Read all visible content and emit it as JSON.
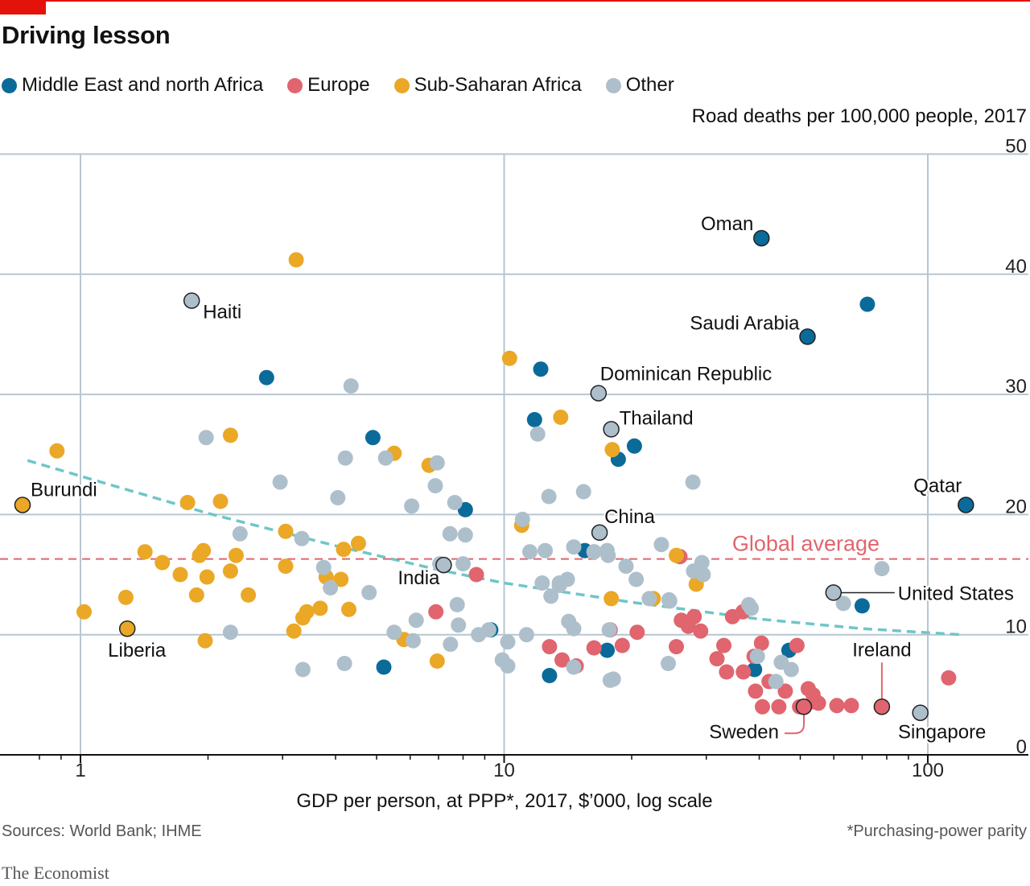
{
  "title": "Driving lesson",
  "legend": [
    {
      "label": "Middle East and north Africa",
      "color": "#0a6b9a"
    },
    {
      "label": "Europe",
      "color": "#e0656e"
    },
    {
      "label": "Sub-Saharan Africa",
      "color": "#eaa826"
    },
    {
      "label": "Other",
      "color": "#aebfcc"
    }
  ],
  "source": "Sources: World Bank; IHME",
  "footnote": "*Purchasing-power parity",
  "brand": "The Economist",
  "chart_data": {
    "type": "scatter",
    "ylabel": "Road deaths per 100,000 people, 2017",
    "xlabel": "GDP per person, at PPP*, 2017, $’000, log scale",
    "x_scale": "log",
    "xlim": [
      0.72,
      128
    ],
    "ylim": [
      0,
      50
    ],
    "x_ticks": [
      {
        "value": 1,
        "label": "1"
      },
      {
        "value": 10,
        "label": "10"
      },
      {
        "value": 100,
        "label": "100"
      }
    ],
    "y_ticks": [
      {
        "value": 0,
        "label": "0"
      },
      {
        "value": 10,
        "label": "10"
      },
      {
        "value": 20,
        "label": "20"
      },
      {
        "value": 30,
        "label": "30"
      },
      {
        "value": 40,
        "label": "40"
      },
      {
        "value": 50,
        "label": "50"
      }
    ],
    "grid": true,
    "reference_line": {
      "label": "Global average",
      "y": 16.3,
      "color": "#e0656e"
    },
    "trend_line": {
      "color": "#6fc6c6",
      "points": [
        [
          0.75,
          24.5
        ],
        [
          1.0,
          23.2
        ],
        [
          2.0,
          20.1
        ],
        [
          4.0,
          17.4
        ],
        [
          7.0,
          15.4
        ],
        [
          10.0,
          14.3
        ],
        [
          20.0,
          12.7
        ],
        [
          40.0,
          11.3
        ],
        [
          70.0,
          10.5
        ],
        [
          120.0,
          10.0
        ]
      ]
    },
    "series": [
      {
        "name": "Middle East and north Africa",
        "color": "#0a6b9a",
        "points": [
          [
            40.5,
            43
          ],
          [
            72,
            37.5
          ],
          [
            52,
            34.8
          ],
          [
            2.75,
            31.4
          ],
          [
            12.2,
            32.1
          ],
          [
            11.8,
            27.9
          ],
          [
            20.3,
            25.7
          ],
          [
            18.6,
            24.6
          ],
          [
            4.9,
            26.4
          ],
          [
            8.1,
            20.4
          ],
          [
            123,
            20.8
          ],
          [
            15.5,
            17
          ],
          [
            70,
            12.4
          ],
          [
            9.3,
            10.4
          ],
          [
            5.2,
            7.3
          ],
          [
            17.5,
            8.7
          ],
          [
            47,
            8.7
          ],
          [
            39,
            7.1
          ],
          [
            12.8,
            6.6
          ]
        ]
      },
      {
        "name": "Europe",
        "color": "#e0656e",
        "points": [
          [
            26,
            16.5
          ],
          [
            8.6,
            15
          ],
          [
            6.9,
            11.9
          ],
          [
            12.8,
            9
          ],
          [
            13.7,
            7.9
          ],
          [
            14.8,
            7.4
          ],
          [
            16.3,
            8.9
          ],
          [
            17.8,
            10.4
          ],
          [
            19,
            9.1
          ],
          [
            20.6,
            10.2
          ],
          [
            25.5,
            9
          ],
          [
            26.2,
            11.2
          ],
          [
            27.2,
            10.7
          ],
          [
            28.1,
            11.5
          ],
          [
            29.1,
            10.3
          ],
          [
            31.8,
            8
          ],
          [
            33,
            9.1
          ],
          [
            33.5,
            6.9
          ],
          [
            34.6,
            11.5
          ],
          [
            36.6,
            11.9
          ],
          [
            36.7,
            6.9
          ],
          [
            38.9,
            8.2
          ],
          [
            39.2,
            5.3
          ],
          [
            40.5,
            9.3
          ],
          [
            40.7,
            4
          ],
          [
            42.2,
            6.1
          ],
          [
            44.5,
            4
          ],
          [
            46.1,
            5.3
          ],
          [
            49.1,
            9.1
          ],
          [
            49.8,
            4
          ],
          [
            52.2,
            5.5
          ],
          [
            53.6,
            5
          ],
          [
            54.1,
            4.4
          ],
          [
            55.2,
            4.3
          ],
          [
            61,
            4.1
          ],
          [
            66,
            4.1
          ],
          [
            78,
            4
          ],
          [
            112,
            6.4
          ]
        ]
      },
      {
        "name": "Sub-Saharan Africa",
        "color": "#eaa826",
        "points": [
          [
            3.23,
            41.2
          ],
          [
            10.3,
            33
          ],
          [
            13.6,
            28.1
          ],
          [
            2.26,
            26.6
          ],
          [
            0.88,
            25.3
          ],
          [
            5.5,
            25.1
          ],
          [
            6.65,
            24.1
          ],
          [
            18,
            25.4
          ],
          [
            1.79,
            21
          ],
          [
            2.14,
            21.1
          ],
          [
            11,
            19.1
          ],
          [
            1.42,
            16.9
          ],
          [
            1.56,
            16
          ],
          [
            1.72,
            15
          ],
          [
            1.88,
            13.3
          ],
          [
            1.91,
            16.6
          ],
          [
            1.95,
            17
          ],
          [
            1.99,
            14.8
          ],
          [
            2.26,
            15.3
          ],
          [
            2.33,
            16.6
          ],
          [
            2.49,
            13.3
          ],
          [
            3.05,
            18.6
          ],
          [
            3.05,
            15.7
          ],
          [
            3.35,
            11.4
          ],
          [
            3.42,
            11.9
          ],
          [
            3.19,
            10.3
          ],
          [
            3.8,
            14.8
          ],
          [
            3.68,
            12.2
          ],
          [
            4.12,
            14.6
          ],
          [
            4.18,
            17.1
          ],
          [
            4.3,
            12.1
          ],
          [
            4.53,
            17.6
          ],
          [
            1.02,
            11.9
          ],
          [
            1.28,
            13.1
          ],
          [
            1.97,
            9.5
          ],
          [
            5.8,
            9.6
          ],
          [
            6.95,
            7.8
          ],
          [
            17.9,
            13
          ],
          [
            22.5,
            13
          ],
          [
            25.5,
            16.6
          ],
          [
            28.4,
            14.2
          ]
        ]
      },
      {
        "name": "Other",
        "color": "#aebfcc",
        "points": [
          [
            1.83,
            37.8
          ],
          [
            4.35,
            30.7
          ],
          [
            1.98,
            26.4
          ],
          [
            4.22,
            24.7
          ],
          [
            5.25,
            24.7
          ],
          [
            6.95,
            24.3
          ],
          [
            2.96,
            22.7
          ],
          [
            4.05,
            21.4
          ],
          [
            6.05,
            20.7
          ],
          [
            6.88,
            22.4
          ],
          [
            7.65,
            21
          ],
          [
            11.05,
            19.6
          ],
          [
            12.75,
            21.5
          ],
          [
            15.4,
            21.9
          ],
          [
            12,
            26.7
          ],
          [
            27.9,
            22.7
          ],
          [
            2.38,
            18.4
          ],
          [
            3.33,
            18
          ],
          [
            7.45,
            18.4
          ],
          [
            8.1,
            18.3
          ],
          [
            7.05,
            15.9
          ],
          [
            8,
            15.9
          ],
          [
            11.5,
            16.9
          ],
          [
            12.5,
            17
          ],
          [
            14.6,
            17.3
          ],
          [
            16.3,
            16.9
          ],
          [
            17.5,
            17
          ],
          [
            17.6,
            16.6
          ],
          [
            19.4,
            15.7
          ],
          [
            20.5,
            14.6
          ],
          [
            22,
            13
          ],
          [
            23.5,
            17.5
          ],
          [
            24.6,
            12.8
          ],
          [
            28,
            15.3
          ],
          [
            29.3,
            16
          ],
          [
            29.5,
            15
          ],
          [
            3.75,
            15.6
          ],
          [
            3.89,
            13.9
          ],
          [
            4.8,
            13.5
          ],
          [
            6.2,
            11.2
          ],
          [
            7.75,
            12.5
          ],
          [
            6.1,
            9.5
          ],
          [
            5.5,
            10.2
          ],
          [
            7.47,
            9.2
          ],
          [
            7.8,
            10.8
          ],
          [
            8.7,
            10
          ],
          [
            9.2,
            10.4
          ],
          [
            9.9,
            7.9
          ],
          [
            10.2,
            7.4
          ],
          [
            10.2,
            9.4
          ],
          [
            11.3,
            10
          ],
          [
            12.3,
            14.3
          ],
          [
            12.9,
            13.2
          ],
          [
            13.5,
            14.3
          ],
          [
            13.5,
            14.1
          ],
          [
            14.1,
            14.6
          ],
          [
            14.2,
            11.1
          ],
          [
            14.6,
            7.3
          ],
          [
            14.6,
            10.5
          ],
          [
            16.3,
            16.9
          ],
          [
            17.7,
            10.4
          ],
          [
            17.8,
            6.2
          ],
          [
            18.1,
            6.3
          ],
          [
            24.5,
            12.9
          ],
          [
            24.4,
            7.6
          ],
          [
            37.8,
            12.5
          ],
          [
            38.3,
            12.2
          ],
          [
            39.6,
            8.2
          ],
          [
            43.8,
            6.1
          ],
          [
            45.1,
            7.7
          ],
          [
            47.6,
            7.1
          ],
          [
            63.2,
            12.6
          ],
          [
            77.9,
            15.5
          ],
          [
            2.26,
            10.2
          ],
          [
            3.35,
            7.1
          ],
          [
            4.2,
            7.6
          ]
        ]
      }
    ],
    "annotations": [
      {
        "label": "Oman",
        "x": 40.5,
        "y": 43,
        "series": "Middle East and north Africa"
      },
      {
        "label": "Haiti",
        "x": 1.83,
        "y": 37.8,
        "series": "Other"
      },
      {
        "label": "Saudi Arabia",
        "x": 52,
        "y": 34.8,
        "series": "Middle East and north Africa"
      },
      {
        "label": "Dominican Republic",
        "x": 16.7,
        "y": 30.1,
        "series": "Other"
      },
      {
        "label": "Thailand",
        "x": 17.9,
        "y": 27.1,
        "series": "Other"
      },
      {
        "label": "Burundi",
        "x": 0.73,
        "y": 20.8,
        "series": "Sub-Saharan Africa"
      },
      {
        "label": "Qatar",
        "x": 123,
        "y": 20.8,
        "series": "Middle East and north Africa"
      },
      {
        "label": "China",
        "x": 16.8,
        "y": 18.5,
        "series": "Other"
      },
      {
        "label": "India",
        "x": 7.2,
        "y": 15.8,
        "series": "Other"
      },
      {
        "label": "United States",
        "x": 59.9,
        "y": 13.5,
        "series": "Other"
      },
      {
        "label": "Liberia",
        "x": 1.29,
        "y": 10.5,
        "series": "Sub-Saharan Africa"
      },
      {
        "label": "Ireland",
        "x": 77.9,
        "y": 4,
        "series": "Europe"
      },
      {
        "label": "Sweden",
        "x": 51,
        "y": 4,
        "series": "Europe"
      },
      {
        "label": "Singapore",
        "x": 96,
        "y": 3.5,
        "series": "Other"
      }
    ]
  }
}
